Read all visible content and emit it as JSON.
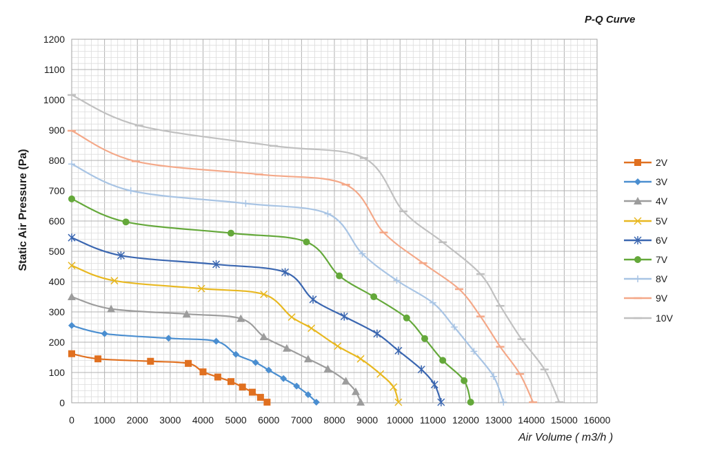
{
  "chart_data": {
    "type": "line",
    "title": "P-Q Curve",
    "xlabel": "Air Volume ( m3/h )",
    "ylabel": "Static Air Pressure  (Pa)",
    "xlim": [
      0,
      16000
    ],
    "ylim": [
      0,
      1200
    ],
    "x_ticks": [
      "0",
      "1000",
      "2000",
      "3000",
      "4000",
      "5000",
      "6000",
      "7000",
      "8000",
      "9000",
      "10000",
      "11000",
      "12000",
      "13000",
      "14000",
      "15000",
      "16000"
    ],
    "y_ticks": [
      "0",
      "100",
      "200",
      "300",
      "400",
      "500",
      "600",
      "700",
      "800",
      "900",
      "1000",
      "1100",
      "1200"
    ],
    "grid": "major and minor",
    "legend_position": "right",
    "series": [
      {
        "name": "2V",
        "color": "#e07020",
        "marker": "square",
        "x": [
          0,
          800,
          2400,
          3550,
          4000,
          4450,
          4850,
          5200,
          5500,
          5750,
          5950
        ],
        "y": [
          162,
          145,
          137,
          130,
          102,
          85,
          70,
          52,
          35,
          18,
          2
        ]
      },
      {
        "name": "3V",
        "color": "#4a8ed0",
        "marker": "diamond",
        "x": [
          0,
          1000,
          2950,
          4400,
          5000,
          5600,
          6000,
          6450,
          6850,
          7200,
          7450
        ],
        "y": [
          255,
          228,
          213,
          203,
          160,
          133,
          108,
          80,
          55,
          27,
          2
        ]
      },
      {
        "name": "4V",
        "color": "#9c9c9c",
        "marker": "triangle",
        "x": [
          0,
          1200,
          3500,
          5150,
          5850,
          6550,
          7200,
          7800,
          8350,
          8650,
          8800
        ],
        "y": [
          350,
          310,
          293,
          278,
          218,
          180,
          145,
          112,
          72,
          37,
          2
        ]
      },
      {
        "name": "5V",
        "color": "#e8b820",
        "marker": "x",
        "x": [
          0,
          1300,
          3950,
          5850,
          6700,
          7300,
          8100,
          8800,
          9400,
          9800,
          9950
        ],
        "y": [
          453,
          403,
          377,
          358,
          283,
          246,
          187,
          145,
          95,
          52,
          2
        ]
      },
      {
        "name": "6V",
        "color": "#3a66b0",
        "marker": "star",
        "x": [
          0,
          1500,
          4400,
          6500,
          7350,
          8300,
          9300,
          9950,
          10650,
          11050,
          11250
        ],
        "y": [
          545,
          486,
          457,
          431,
          341,
          285,
          228,
          172,
          110,
          60,
          2
        ]
      },
      {
        "name": "7V",
        "color": "#64a83a",
        "marker": "circle",
        "x": [
          0,
          1650,
          4850,
          7150,
          8150,
          9200,
          10200,
          10750,
          11300,
          11950,
          12150
        ],
        "y": [
          673,
          597,
          560,
          531,
          419,
          350,
          280,
          212,
          140,
          73,
          2
        ]
      },
      {
        "name": "8V",
        "color": "#a8c4e4",
        "marker": "plus",
        "x": [
          0,
          1800,
          5300,
          7800,
          8850,
          9900,
          11000,
          11650,
          12250,
          12850,
          13150
        ],
        "y": [
          788,
          700,
          658,
          624,
          492,
          404,
          330,
          250,
          170,
          87,
          2
        ]
      },
      {
        "name": "9V",
        "color": "#f4a888",
        "marker": "dash",
        "x": [
          0,
          1950,
          5700,
          8350,
          9500,
          10700,
          11800,
          12450,
          13050,
          13650,
          14050
        ],
        "y": [
          898,
          797,
          754,
          720,
          562,
          461,
          375,
          285,
          185,
          95,
          2
        ]
      },
      {
        "name": "10V",
        "color": "#c0c0c0",
        "marker": "dash",
        "x": [
          0,
          2050,
          6150,
          8900,
          10100,
          11300,
          12450,
          13050,
          13700,
          14400,
          14850
        ],
        "y": [
          1016,
          915,
          848,
          808,
          632,
          530,
          425,
          320,
          210,
          110,
          2
        ]
      }
    ]
  }
}
